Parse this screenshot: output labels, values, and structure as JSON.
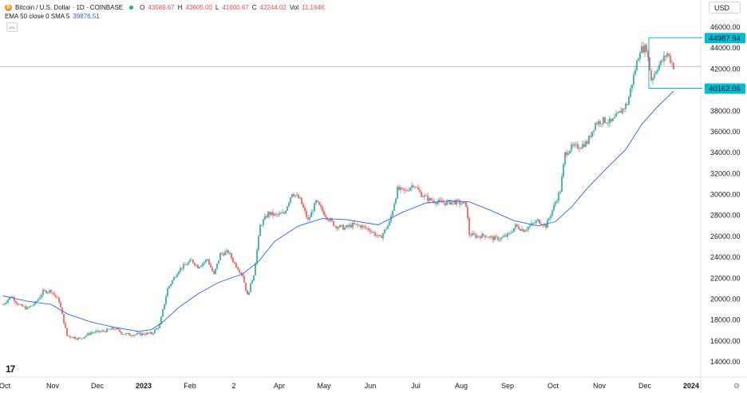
{
  "legend": {
    "symbol": "Bitcoin / U.S. Dollar · 1D · COINBASE",
    "o_label": "O",
    "o_value": "43589.67",
    "h_label": "H",
    "h_value": "43605.00",
    "l_label": "L",
    "l_value": "41600.67",
    "c_label": "C",
    "c_value": "42244.02",
    "vol_label": "Vol",
    "vol_value": "11.164K",
    "ema_label": "EMA 50 close 0 SMA 5",
    "ema_value": "39876.51",
    "collapse_glyph": "︿"
  },
  "toolbar": {
    "currency": "USD"
  },
  "colors": {
    "up": "#26a69a",
    "down": "#ef5350",
    "ema": "#2962ff",
    "level": "#00bcd4"
  },
  "chart_data": {
    "type": "candlestick",
    "ylim": [
      13000,
      47000
    ],
    "y_ticks": [
      14000,
      16000,
      18000,
      20000,
      22000,
      24000,
      26000,
      28000,
      30000,
      32000,
      34000,
      36000,
      38000,
      40000,
      42000,
      44000,
      46000
    ],
    "y_tick_labels": [
      "14000.00",
      "16000.00",
      "18000.00",
      "20000.00",
      "22000.00",
      "24000.00",
      "26000.00",
      "28000.00",
      "30000.00",
      "32000.00",
      "34000.00",
      "36000.00",
      "38000.00",
      "40000.00",
      "42000.00",
      "44000.00",
      "46000.00"
    ],
    "x_tick_labels": [
      "Oct",
      "Nov",
      "Dec",
      "2023",
      "Feb",
      "2",
      "Apr",
      "May",
      "Jun",
      "Jul",
      "Aug",
      "Sep",
      "Oct",
      "Nov",
      "Dec",
      "2024"
    ],
    "price_path": [
      [
        0,
        19500
      ],
      [
        5,
        20300
      ],
      [
        10,
        19400
      ],
      [
        15,
        19100
      ],
      [
        20,
        19600
      ],
      [
        25,
        20700
      ],
      [
        30,
        20800
      ],
      [
        35,
        19800
      ],
      [
        40,
        16500
      ],
      [
        48,
        16200
      ],
      [
        55,
        16800
      ],
      [
        62,
        16900
      ],
      [
        70,
        17200
      ],
      [
        75,
        16700
      ],
      [
        80,
        16600
      ],
      [
        90,
        16700
      ],
      [
        93,
        16700
      ],
      [
        98,
        17500
      ],
      [
        103,
        21000
      ],
      [
        110,
        22800
      ],
      [
        118,
        23700
      ],
      [
        122,
        23100
      ],
      [
        128,
        23800
      ],
      [
        132,
        22300
      ],
      [
        136,
        24300
      ],
      [
        141,
        24500
      ],
      [
        145,
        23400
      ],
      [
        150,
        22300
      ],
      [
        153,
        20300
      ],
      [
        157,
        22400
      ],
      [
        161,
        27000
      ],
      [
        166,
        28200
      ],
      [
        171,
        28000
      ],
      [
        176,
        28200
      ],
      [
        181,
        30200
      ],
      [
        186,
        29500
      ],
      [
        191,
        27500
      ],
      [
        196,
        29300
      ],
      [
        202,
        28000
      ],
      [
        208,
        27000
      ],
      [
        214,
        26800
      ],
      [
        219,
        27100
      ],
      [
        224,
        27000
      ],
      [
        230,
        26600
      ],
      [
        236,
        25800
      ],
      [
        242,
        27300
      ],
      [
        247,
        30500
      ],
      [
        252,
        30300
      ],
      [
        257,
        31000
      ],
      [
        262,
        30000
      ],
      [
        267,
        29500
      ],
      [
        272,
        29300
      ],
      [
        277,
        29200
      ],
      [
        282,
        29300
      ],
      [
        286,
        29200
      ],
      [
        290,
        29000
      ],
      [
        292,
        26200
      ],
      [
        297,
        26000
      ],
      [
        302,
        26100
      ],
      [
        307,
        25800
      ],
      [
        312,
        25800
      ],
      [
        317,
        26200
      ],
      [
        321,
        27000
      ],
      [
        326,
        26600
      ],
      [
        331,
        27100
      ],
      [
        335,
        27500
      ],
      [
        340,
        27000
      ],
      [
        344,
        28500
      ],
      [
        349,
        30400
      ],
      [
        352,
        33900
      ],
      [
        356,
        34500
      ],
      [
        361,
        34600
      ],
      [
        366,
        35000
      ],
      [
        371,
        36800
      ],
      [
        376,
        37100
      ],
      [
        381,
        36900
      ],
      [
        386,
        37800
      ],
      [
        391,
        38700
      ],
      [
        396,
        42000
      ],
      [
        399,
        43900
      ],
      [
        403,
        44000
      ],
      [
        406,
        41000
      ],
      [
        410,
        42200
      ],
      [
        413,
        42800
      ],
      [
        416,
        43500
      ],
      [
        420,
        42244
      ]
    ],
    "ema_values": [
      [
        0,
        20300
      ],
      [
        15,
        19800
      ],
      [
        30,
        19500
      ],
      [
        40,
        18600
      ],
      [
        55,
        17800
      ],
      [
        70,
        17300
      ],
      [
        85,
        16900
      ],
      [
        93,
        17100
      ],
      [
        100,
        17800
      ],
      [
        110,
        19200
      ],
      [
        122,
        20500
      ],
      [
        135,
        21600
      ],
      [
        150,
        22400
      ],
      [
        160,
        23600
      ],
      [
        170,
        25500
      ],
      [
        185,
        27000
      ],
      [
        200,
        27700
      ],
      [
        215,
        27600
      ],
      [
        235,
        27100
      ],
      [
        250,
        28300
      ],
      [
        265,
        29200
      ],
      [
        280,
        29400
      ],
      [
        292,
        29300
      ],
      [
        305,
        28500
      ],
      [
        320,
        27500
      ],
      [
        335,
        27000
      ],
      [
        346,
        27400
      ],
      [
        356,
        28800
      ],
      [
        366,
        30600
      ],
      [
        378,
        32500
      ],
      [
        390,
        34300
      ],
      [
        400,
        36700
      ],
      [
        410,
        38400
      ],
      [
        420,
        39876.51
      ]
    ],
    "levels": [
      {
        "value": 44987.94,
        "label": "44987.94"
      },
      {
        "value": 40162.06,
        "label": "40162.06"
      }
    ],
    "crosshair_value": 42244.02
  }
}
